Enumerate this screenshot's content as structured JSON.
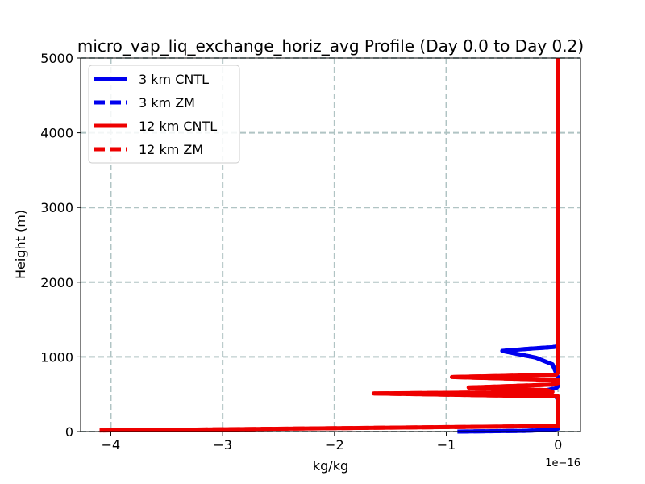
{
  "chart_data": {
    "type": "line",
    "title": "micro_vap_liq_exchange_horiz_avg Profile (Day 0.0 to Day 0.2)",
    "xlabel": "kg/kg",
    "ylabel": "Height (m)",
    "x_offset_label": "1e−16",
    "xlim": [
      -4.27,
      0.2
    ],
    "ylim": [
      0,
      5000
    ],
    "x_ticks": [
      -4,
      -3,
      -2,
      -1,
      0
    ],
    "x_tick_labels": [
      "−4",
      "−3",
      "−2",
      "−1",
      "0"
    ],
    "y_ticks": [
      0,
      1000,
      2000,
      3000,
      4000,
      5000
    ],
    "y_tick_labels": [
      "0",
      "1000",
      "2000",
      "3000",
      "4000",
      "5000"
    ],
    "grid": true,
    "legend_position": "upper-left",
    "series": [
      {
        "name": "3 km CNTL",
        "color": "#0000ee",
        "style": "solid",
        "points": [
          [
            -0.9,
            0
          ],
          [
            -0.3,
            10
          ],
          [
            -0.05,
            25
          ],
          [
            0,
            40
          ],
          [
            0,
            300
          ],
          [
            0,
            420
          ],
          [
            -0.02,
            470
          ],
          [
            -0.35,
            510
          ],
          [
            -0.25,
            535
          ],
          [
            -0.1,
            555
          ],
          [
            -0.02,
            580
          ],
          [
            0,
            610
          ],
          [
            -0.02,
            680
          ],
          [
            0,
            720
          ],
          [
            -0.05,
            900
          ],
          [
            -0.2,
            990
          ],
          [
            -0.5,
            1080
          ],
          [
            -0.25,
            1110
          ],
          [
            -0.05,
            1130
          ],
          [
            0,
            1140
          ],
          [
            0,
            5000
          ]
        ]
      },
      {
        "name": "3 km ZM",
        "color": "#0000ee",
        "style": "dashed",
        "points": [
          [
            -0.9,
            0
          ],
          [
            -0.3,
            10
          ],
          [
            -0.05,
            25
          ],
          [
            0,
            40
          ],
          [
            0,
            300
          ],
          [
            0,
            420
          ],
          [
            -0.02,
            470
          ],
          [
            -0.35,
            510
          ],
          [
            -0.25,
            535
          ],
          [
            -0.1,
            555
          ],
          [
            -0.02,
            580
          ],
          [
            0,
            610
          ],
          [
            -0.02,
            680
          ],
          [
            0,
            720
          ],
          [
            -0.05,
            900
          ],
          [
            -0.2,
            990
          ],
          [
            -0.5,
            1080
          ],
          [
            -0.25,
            1110
          ],
          [
            -0.05,
            1130
          ],
          [
            0,
            1140
          ],
          [
            0,
            5000
          ]
        ]
      },
      {
        "name": "12 km CNTL",
        "color": "#ee0000",
        "style": "solid",
        "points": [
          [
            -4.1,
            15
          ],
          [
            0,
            75
          ],
          [
            0,
            470
          ],
          [
            -1.65,
            510
          ],
          [
            -0.05,
            530
          ],
          [
            -0.1,
            555
          ],
          [
            -0.8,
            590
          ],
          [
            -0.05,
            630
          ],
          [
            0,
            650
          ],
          [
            -0.05,
            660
          ],
          [
            0,
            690
          ],
          [
            -0.95,
            730
          ],
          [
            -0.02,
            760
          ],
          [
            0,
            790
          ],
          [
            0,
            5000
          ]
        ]
      },
      {
        "name": "12 km ZM",
        "color": "#ee0000",
        "style": "dashed",
        "points": [
          [
            -4.1,
            15
          ],
          [
            0,
            75
          ],
          [
            0,
            470
          ],
          [
            -1.65,
            510
          ],
          [
            -0.05,
            530
          ],
          [
            -0.1,
            555
          ],
          [
            -0.8,
            590
          ],
          [
            -0.05,
            630
          ],
          [
            0,
            650
          ],
          [
            -0.05,
            660
          ],
          [
            0,
            690
          ],
          [
            -0.95,
            730
          ],
          [
            -0.02,
            760
          ],
          [
            0,
            790
          ],
          [
            0,
            5000
          ]
        ]
      }
    ]
  }
}
